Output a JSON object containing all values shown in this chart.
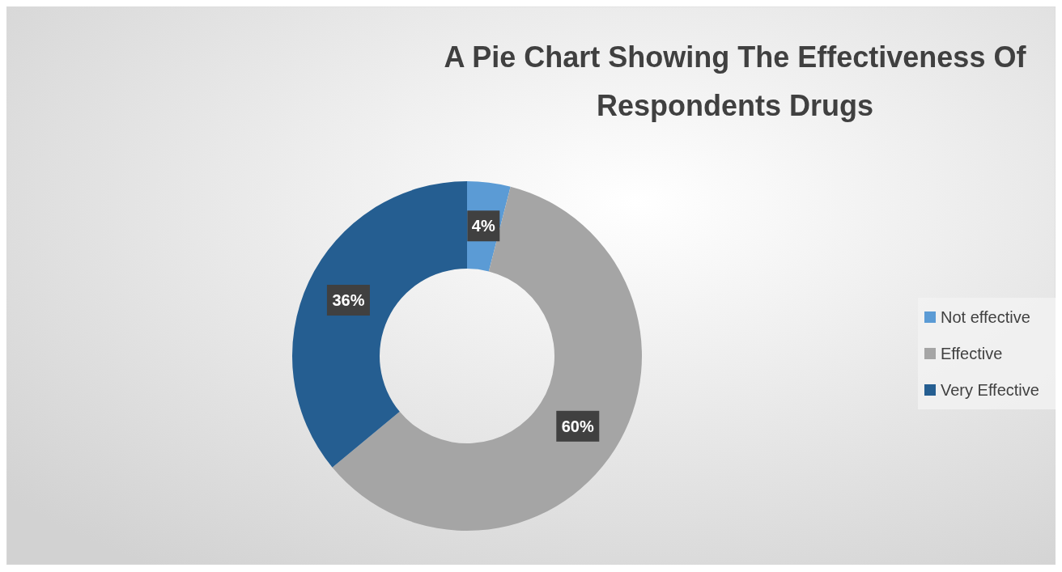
{
  "chart_data": {
    "type": "donut",
    "title": "A Pie Chart Showing The Effectiveness Of Respondents Drugs",
    "categories": [
      "Not effective",
      "Effective",
      "Very Effective"
    ],
    "values": [
      4,
      60,
      36
    ],
    "colors": [
      "#5b9bd5",
      "#a5a5a5",
      "#255e91"
    ],
    "value_labels": [
      "4%",
      "60%",
      "36%"
    ],
    "legend": "right"
  }
}
